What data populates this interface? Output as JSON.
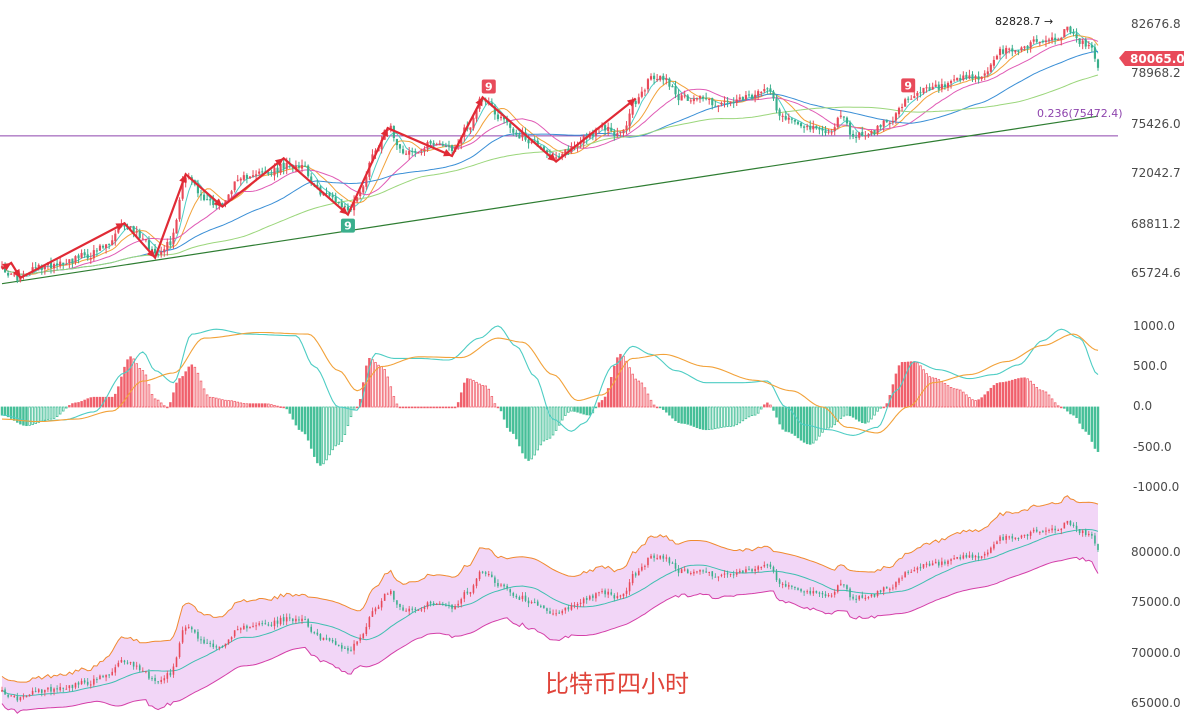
{
  "colors": {
    "up": "#e84a5a",
    "down": "#3aaf8c",
    "up_bar": "#f0606c",
    "down_bar": "#46bf98",
    "ma5": "#4ecdc4",
    "ma10": "#f2a23a",
    "ma20": "#e05bb5",
    "ma60": "#3a8fd6",
    "ma120": "#9bd67b",
    "trend": "#2e7d32",
    "fib": "#8e44ad",
    "zigzag": "#e02a35",
    "dif": "#4ecdc4",
    "dea": "#f2a23a",
    "boll_upper": "#f08a30",
    "boll_mid": "#3fbfb0",
    "boll_lower": "#d43fa8",
    "boll_fill": "#f2d6f7"
  },
  "caption": "比特币四小时",
  "annotations": {
    "high": "82828.7 →",
    "fib": "0.236(75472.4)",
    "last_price": "80065.0",
    "td_badge": "9"
  },
  "chart_data": [
    {
      "type": "candlestick",
      "panel": "price",
      "yticks": [
        "82676.8",
        "78968.2",
        "75426.0",
        "72042.7",
        "68811.2",
        "65724.6"
      ],
      "ylim": [
        64400,
        84100
      ],
      "close_anchors": [
        [
          0,
          66700
        ],
        [
          3,
          66000
        ],
        [
          6,
          65900
        ],
        [
          12,
          66600
        ],
        [
          20,
          67000
        ],
        [
          28,
          67400
        ],
        [
          34,
          68000
        ],
        [
          40,
          69500
        ],
        [
          45,
          68800
        ],
        [
          50,
          67600
        ],
        [
          55,
          68300
        ],
        [
          60,
          72900
        ],
        [
          66,
          71200
        ],
        [
          72,
          70800
        ],
        [
          76,
          72200
        ],
        [
          82,
          73000
        ],
        [
          87,
          72900
        ],
        [
          92,
          73400
        ],
        [
          98,
          73600
        ],
        [
          103,
          71800
        ],
        [
          108,
          71300
        ],
        [
          113,
          70500
        ],
        [
          117,
          71600
        ],
        [
          121,
          74200
        ],
        [
          126,
          76100
        ],
        [
          131,
          74500
        ],
        [
          136,
          74300
        ],
        [
          141,
          75100
        ],
        [
          147,
          74500
        ],
        [
          152,
          76000
        ],
        [
          157,
          78100
        ],
        [
          163,
          76700
        ],
        [
          169,
          75500
        ],
        [
          175,
          74900
        ],
        [
          181,
          73800
        ],
        [
          186,
          74700
        ],
        [
          192,
          75600
        ],
        [
          197,
          76000
        ],
        [
          202,
          75500
        ],
        [
          207,
          77800
        ],
        [
          212,
          79300
        ],
        [
          216,
          79400
        ],
        [
          222,
          78000
        ],
        [
          228,
          78100
        ],
        [
          234,
          77600
        ],
        [
          240,
          77800
        ],
        [
          246,
          78200
        ],
        [
          251,
          78700
        ],
        [
          254,
          76900
        ],
        [
          260,
          76400
        ],
        [
          265,
          75900
        ],
        [
          270,
          75700
        ],
        [
          274,
          76800
        ],
        [
          278,
          75500
        ],
        [
          284,
          75700
        ],
        [
          290,
          76600
        ],
        [
          296,
          77800
        ],
        [
          302,
          78600
        ],
        [
          308,
          78800
        ],
        [
          314,
          79300
        ],
        [
          320,
          79400
        ],
        [
          326,
          81100
        ],
        [
          332,
          81300
        ],
        [
          338,
          81900
        ],
        [
          344,
          82000
        ],
        [
          348,
          82600
        ],
        [
          352,
          81800
        ],
        [
          356,
          81400
        ],
        [
          358,
          80065
        ]
      ],
      "ma_series": [
        "MA5",
        "MA10",
        "MA20",
        "MA60",
        "MA120"
      ],
      "trendline": [
        [
          0,
          65500
        ],
        [
          358,
          76800
        ]
      ],
      "fib_level": 75472.4,
      "high": 82828.7,
      "last": 80065.0,
      "td_marks": [
        {
          "i": 113,
          "side": "low"
        },
        {
          "i": 159,
          "side": "high"
        },
        {
          "i": 296,
          "side": "high"
        }
      ]
    },
    {
      "type": "histogram",
      "panel": "macd",
      "yticks": [
        "1000.0",
        "500.0",
        "0.0",
        "-500.0",
        "-1000.0"
      ],
      "ylim": [
        -1000,
        1000
      ],
      "hist_anchors": [
        [
          0,
          -100
        ],
        [
          8,
          -230
        ],
        [
          16,
          -150
        ],
        [
          24,
          50
        ],
        [
          30,
          120
        ],
        [
          36,
          120
        ],
        [
          42,
          620
        ],
        [
          46,
          450
        ],
        [
          50,
          100
        ],
        [
          54,
          0
        ],
        [
          58,
          350
        ],
        [
          62,
          520
        ],
        [
          68,
          120
        ],
        [
          74,
          80
        ],
        [
          80,
          40
        ],
        [
          86,
          40
        ],
        [
          92,
          0
        ],
        [
          98,
          -300
        ],
        [
          104,
          -720
        ],
        [
          110,
          -460
        ],
        [
          116,
          0
        ],
        [
          120,
          600
        ],
        [
          124,
          500
        ],
        [
          130,
          0
        ],
        [
          136,
          0
        ],
        [
          142,
          0
        ],
        [
          148,
          0
        ],
        [
          152,
          350
        ],
        [
          158,
          260
        ],
        [
          162,
          0
        ],
        [
          166,
          -300
        ],
        [
          172,
          -660
        ],
        [
          178,
          -400
        ],
        [
          186,
          -50
        ],
        [
          192,
          -100
        ],
        [
          196,
          80
        ],
        [
          202,
          650
        ],
        [
          208,
          320
        ],
        [
          214,
          0
        ],
        [
          222,
          -200
        ],
        [
          230,
          -280
        ],
        [
          238,
          -240
        ],
        [
          246,
          -100
        ],
        [
          250,
          50
        ],
        [
          256,
          -300
        ],
        [
          264,
          -460
        ],
        [
          270,
          -260
        ],
        [
          276,
          -100
        ],
        [
          282,
          -200
        ],
        [
          288,
          0
        ],
        [
          294,
          550
        ],
        [
          298,
          560
        ],
        [
          304,
          360
        ],
        [
          312,
          220
        ],
        [
          318,
          80
        ],
        [
          326,
          300
        ],
        [
          334,
          360
        ],
        [
          340,
          200
        ],
        [
          346,
          0
        ],
        [
          350,
          -100
        ],
        [
          354,
          -300
        ],
        [
          358,
          -550
        ]
      ],
      "dif_anchors": [
        [
          0,
          -100
        ],
        [
          10,
          -180
        ],
        [
          20,
          -160
        ],
        [
          30,
          -60
        ],
        [
          40,
          420
        ],
        [
          46,
          680
        ],
        [
          50,
          450
        ],
        [
          56,
          300
        ],
        [
          62,
          900
        ],
        [
          70,
          960
        ],
        [
          80,
          900
        ],
        [
          96,
          880
        ],
        [
          102,
          500
        ],
        [
          110,
          0
        ],
        [
          116,
          -40
        ],
        [
          122,
          660
        ],
        [
          128,
          600
        ],
        [
          136,
          600
        ],
        [
          146,
          580
        ],
        [
          156,
          850
        ],
        [
          162,
          1000
        ],
        [
          168,
          750
        ],
        [
          174,
          380
        ],
        [
          180,
          -150
        ],
        [
          186,
          -300
        ],
        [
          190,
          -200
        ],
        [
          200,
          520
        ],
        [
          206,
          750
        ],
        [
          212,
          650
        ],
        [
          220,
          450
        ],
        [
          230,
          300
        ],
        [
          242,
          300
        ],
        [
          250,
          320
        ],
        [
          256,
          0
        ],
        [
          262,
          -220
        ],
        [
          270,
          -280
        ],
        [
          278,
          -350
        ],
        [
          286,
          -250
        ],
        [
          292,
          200
        ],
        [
          298,
          560
        ],
        [
          306,
          460
        ],
        [
          316,
          350
        ],
        [
          324,
          400
        ],
        [
          332,
          520
        ],
        [
          340,
          820
        ],
        [
          346,
          960
        ],
        [
          352,
          850
        ],
        [
          358,
          400
        ]
      ],
      "dea_anchors": [
        [
          0,
          -150
        ],
        [
          12,
          -180
        ],
        [
          24,
          -150
        ],
        [
          36,
          -50
        ],
        [
          46,
          320
        ],
        [
          56,
          420
        ],
        [
          66,
          850
        ],
        [
          84,
          920
        ],
        [
          100,
          900
        ],
        [
          110,
          450
        ],
        [
          116,
          200
        ],
        [
          124,
          500
        ],
        [
          136,
          620
        ],
        [
          150,
          610
        ],
        [
          162,
          850
        ],
        [
          170,
          800
        ],
        [
          180,
          400
        ],
        [
          188,
          80
        ],
        [
          196,
          150
        ],
        [
          206,
          600
        ],
        [
          216,
          650
        ],
        [
          230,
          500
        ],
        [
          246,
          330
        ],
        [
          258,
          200
        ],
        [
          268,
          0
        ],
        [
          276,
          -250
        ],
        [
          286,
          -320
        ],
        [
          296,
          0
        ],
        [
          304,
          300
        ],
        [
          316,
          400
        ],
        [
          328,
          560
        ],
        [
          340,
          760
        ],
        [
          350,
          900
        ],
        [
          358,
          700
        ]
      ]
    },
    {
      "type": "bollinger",
      "panel": "boll",
      "yticks": [
        "80000.0",
        "75000.0",
        "70000.0",
        "65000.0"
      ],
      "ylim": [
        64600,
        83400
      ],
      "upper_offset_anchors": [
        [
          0,
          1300
        ],
        [
          30,
          1400
        ],
        [
          40,
          2600
        ],
        [
          60,
          3000
        ],
        [
          100,
          2400
        ],
        [
          120,
          2600
        ],
        [
          150,
          2800
        ],
        [
          180,
          2800
        ],
        [
          220,
          2400
        ],
        [
          260,
          1800
        ],
        [
          290,
          2100
        ],
        [
          320,
          2600
        ],
        [
          358,
          2600
        ]
      ],
      "lower_offset_anchors": [
        [
          0,
          1300
        ],
        [
          30,
          1400
        ],
        [
          40,
          2600
        ],
        [
          60,
          3000
        ],
        [
          100,
          2400
        ],
        [
          120,
          2600
        ],
        [
          150,
          2800
        ],
        [
          180,
          2800
        ],
        [
          220,
          2400
        ],
        [
          260,
          1800
        ],
        [
          290,
          2100
        ],
        [
          320,
          2600
        ],
        [
          358,
          2600
        ]
      ]
    }
  ]
}
